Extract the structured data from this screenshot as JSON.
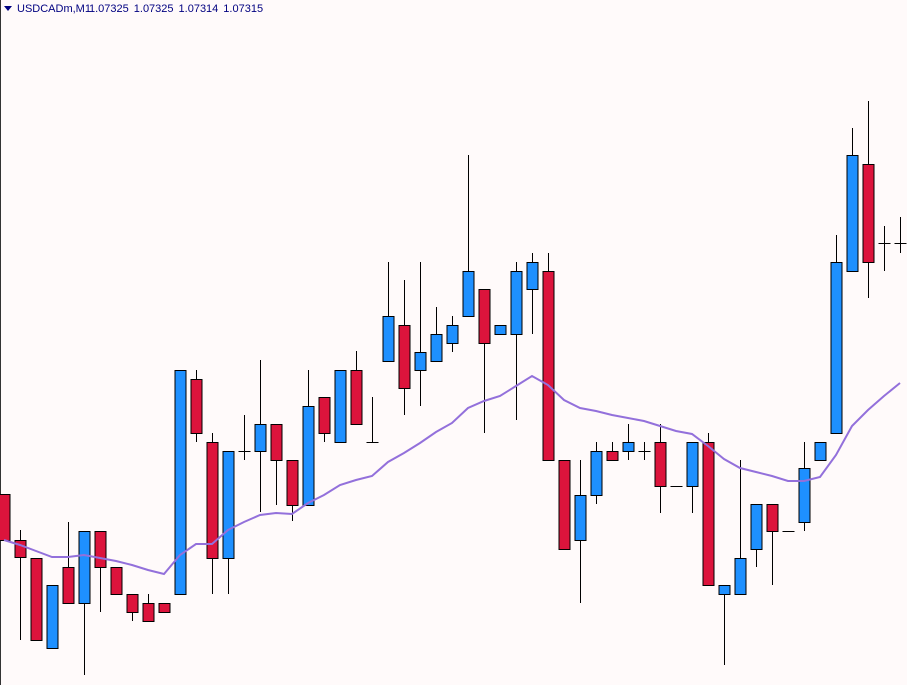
{
  "chart_data": {
    "type": "candlestick",
    "title": "USDCADm,M1",
    "quote": [
      1.07325,
      1.07325,
      1.07314,
      1.07315
    ],
    "up_color": "#1e90ff",
    "down_color": "#dc143c",
    "ylim": [
      0,
      685
    ],
    "open": [
      191,
      145,
      127,
      37,
      118,
      82,
      154,
      118,
      91,
      82,
      82,
      91,
      306,
      243,
      127,
      234,
      234,
      261,
      225,
      180,
      288,
      243,
      315,
      243,
      324,
      360,
      315,
      324,
      342,
      369,
      396,
      351,
      351,
      396,
      414,
      225,
      145,
      190,
      234,
      234,
      234,
      243,
      199,
      199,
      243,
      91,
      91,
      136,
      181,
      154,
      163,
      225,
      252,
      414,
      521,
      442,
      442
    ],
    "high": [
      191,
      155,
      127,
      100,
      163,
      154,
      154,
      118,
      91,
      91,
      82,
      315,
      315,
      252,
      234,
      270,
      325,
      261,
      225,
      315,
      288,
      315,
      334,
      288,
      423,
      405,
      423,
      378,
      369,
      530,
      396,
      360,
      423,
      432,
      432,
      225,
      225,
      243,
      243,
      261,
      243,
      261,
      199,
      243,
      252,
      100,
      225,
      181,
      181,
      154,
      243,
      243,
      450,
      557,
      584,
      459,
      468
    ],
    "low": [
      145,
      45,
      45,
      37,
      82,
      10,
      73,
      91,
      64,
      64,
      73,
      91,
      243,
      91,
      91,
      225,
      173,
      180,
      164,
      180,
      243,
      243,
      261,
      243,
      324,
      270,
      279,
      324,
      333,
      369,
      252,
      351,
      265,
      351,
      225,
      136,
      82,
      181,
      225,
      225,
      225,
      172,
      199,
      172,
      100,
      20,
      91,
      118,
      100,
      154,
      154,
      225,
      252,
      414,
      387,
      414,
      432
    ],
    "close": [
      145,
      128,
      45,
      100,
      82,
      154,
      118,
      91,
      73,
      64,
      73,
      315,
      252,
      127,
      234,
      234,
      261,
      225,
      180,
      279,
      252,
      315,
      261,
      243,
      369,
      297,
      333,
      351,
      360,
      414,
      342,
      360,
      414,
      423,
      225,
      136,
      190,
      234,
      225,
      243,
      234,
      199,
      199,
      243,
      100,
      100,
      127,
      181,
      154,
      154,
      217,
      243,
      423,
      530,
      423,
      442,
      442
    ],
    "ma": {
      "color": "#9370db",
      "values": [
        145,
        140,
        134,
        128,
        128,
        130,
        127,
        124,
        120,
        115,
        111,
        130,
        141,
        141,
        155,
        163,
        170,
        172,
        171,
        182,
        190,
        200,
        205,
        209,
        223,
        232,
        242,
        253,
        262,
        277,
        284,
        289,
        299,
        309,
        300,
        285,
        277,
        274,
        270,
        267,
        264,
        259,
        254,
        251,
        239,
        226,
        217,
        213,
        209,
        204,
        204,
        208,
        230,
        259,
        275,
        289,
        302
      ]
    }
  }
}
